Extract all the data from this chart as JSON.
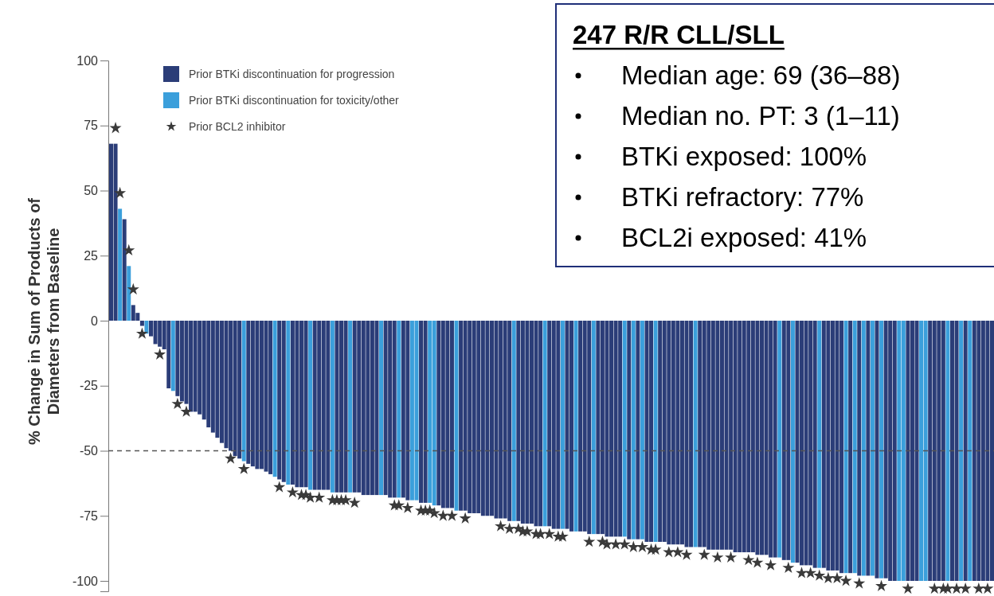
{
  "chart_data": {
    "type": "bar",
    "ylabel": "% Change in Sum of Products of\nDiameters from Baseline",
    "categories": [
      null,
      null,
      null,
      null,
      null,
      null,
      null,
      null,
      null,
      null,
      null,
      null,
      null,
      null,
      null,
      null,
      null,
      null,
      null,
      null,
      null,
      null,
      null,
      null,
      null,
      null,
      null,
      null,
      null,
      null,
      null,
      null,
      null,
      null,
      null,
      null,
      null,
      null,
      null,
      null,
      null,
      null,
      null,
      null,
      null,
      null,
      null,
      null,
      null,
      null,
      null,
      null,
      null,
      null,
      null,
      null,
      null,
      null,
      null,
      null,
      null,
      null,
      null,
      null,
      null,
      null,
      null,
      null,
      null,
      null,
      null,
      null,
      null,
      null,
      null,
      null,
      null,
      null,
      null,
      null,
      null,
      null,
      null,
      null,
      null,
      null,
      null,
      null,
      null,
      null,
      null,
      null,
      null,
      null,
      null,
      null,
      null,
      null,
      null,
      null,
      null,
      null,
      null,
      null,
      null,
      null,
      null,
      null,
      null,
      null,
      null,
      null,
      null,
      null,
      null,
      null,
      null,
      null,
      null,
      null,
      null,
      null,
      null,
      null,
      null,
      null,
      null,
      null,
      null,
      null,
      null,
      null,
      null,
      null,
      null,
      null,
      null,
      null,
      null,
      null,
      null,
      null,
      null,
      null,
      null,
      null,
      null,
      null,
      null,
      null,
      null,
      null,
      null,
      null,
      null,
      null,
      null,
      null,
      null,
      null,
      null,
      null,
      null,
      null,
      null,
      null,
      null,
      null,
      null,
      null,
      null,
      null,
      null,
      null,
      null,
      null,
      null,
      null,
      null,
      null,
      null,
      null,
      null,
      null,
      null,
      null,
      null,
      null,
      null,
      null,
      null,
      null,
      null,
      null,
      null,
      null,
      null,
      null,
      null,
      null
    ],
    "series": [
      {
        "name": "Prior BTKi discontinuation for progression",
        "color": "#2b3d78",
        "values": [
          68,
          68,
          null,
          39,
          null,
          6,
          3,
          -2,
          null,
          -6,
          -9,
          -10,
          -11,
          -26,
          null,
          -29,
          -31,
          -32,
          -35,
          -35,
          -36,
          -38,
          -41,
          -43,
          -45,
          -47,
          -49,
          -50,
          -52,
          -53,
          null,
          -55,
          -56,
          -57,
          -57,
          -58,
          -59,
          null,
          -61,
          -62,
          null,
          -63,
          -64,
          -64,
          -64,
          null,
          -65,
          -65,
          -65,
          -65,
          null,
          -66,
          -66,
          -66,
          null,
          -66,
          -66,
          -67,
          -67,
          -67,
          -67,
          null,
          -67,
          -68,
          -68,
          null,
          -68,
          -69,
          null,
          null,
          -70,
          -70,
          null,
          null,
          -71,
          -72,
          -72,
          -72,
          null,
          -73,
          -73,
          -74,
          -74,
          -74,
          -75,
          -75,
          -75,
          -76,
          -76,
          -76,
          -77,
          null,
          -77,
          -78,
          -78,
          -78,
          -79,
          -79,
          null,
          -79,
          -80,
          -80,
          null,
          -80,
          -81,
          null,
          -81,
          -81,
          -82,
          null,
          -82,
          -82,
          -83,
          -83,
          -83,
          -83,
          null,
          -84,
          null,
          -84,
          null,
          -85,
          -85,
          null,
          -85,
          -85,
          -86,
          -86,
          -86,
          -86,
          -87,
          -87,
          null,
          -87,
          -87,
          -88,
          -88,
          -88,
          -88,
          -88,
          -88,
          -89,
          -89,
          -89,
          -89,
          -89,
          -90,
          -90,
          -90,
          -91,
          -91,
          null,
          -92,
          -92,
          null,
          -93,
          -94,
          -94,
          -94,
          -95,
          null,
          -95,
          -96,
          -96,
          -96,
          -97,
          null,
          -97,
          null,
          -98,
          null,
          -98,
          null,
          -99,
          null,
          -99,
          -100,
          -100,
          null,
          null,
          -100,
          -100,
          -100,
          null,
          null,
          -100,
          -100,
          -100,
          -100,
          null,
          -100,
          -100,
          null,
          -100,
          null,
          -100,
          -100,
          -100,
          -100,
          -100
        ]
      },
      {
        "name": "Prior BTKi discontinuation for toxicity/other",
        "color": "#3b9fdb",
        "values": [
          null,
          null,
          43,
          null,
          21,
          null,
          null,
          null,
          -5,
          null,
          null,
          null,
          null,
          null,
          -27,
          null,
          null,
          null,
          null,
          null,
          null,
          null,
          null,
          null,
          null,
          null,
          null,
          null,
          null,
          null,
          -54,
          null,
          null,
          null,
          null,
          null,
          null,
          -60,
          null,
          null,
          -63,
          null,
          null,
          null,
          null,
          -65,
          null,
          null,
          null,
          null,
          -66,
          null,
          null,
          null,
          -66,
          null,
          null,
          null,
          null,
          null,
          null,
          -67,
          null,
          null,
          null,
          -68,
          null,
          null,
          -69,
          -69,
          null,
          null,
          -70,
          -71,
          null,
          null,
          null,
          null,
          -73,
          null,
          null,
          null,
          null,
          null,
          null,
          null,
          null,
          null,
          null,
          null,
          null,
          -77,
          null,
          null,
          null,
          null,
          null,
          null,
          -79,
          null,
          null,
          null,
          -80,
          null,
          null,
          -81,
          null,
          null,
          null,
          -82,
          null,
          null,
          null,
          null,
          null,
          null,
          -83,
          null,
          -84,
          null,
          -84,
          null,
          null,
          -85,
          null,
          null,
          null,
          null,
          null,
          null,
          null,
          null,
          -87,
          null,
          null,
          null,
          null,
          null,
          null,
          null,
          null,
          null,
          null,
          null,
          null,
          null,
          null,
          null,
          null,
          null,
          null,
          -91,
          null,
          null,
          -93,
          null,
          null,
          null,
          null,
          null,
          -95,
          null,
          null,
          null,
          null,
          null,
          -97,
          null,
          -97,
          null,
          -98,
          null,
          -98,
          null,
          -99,
          null,
          null,
          null,
          -100,
          -100,
          null,
          null,
          null,
          -100,
          -100,
          null,
          null,
          null,
          null,
          -100,
          null,
          null,
          -100,
          null,
          -100,
          null,
          null,
          null,
          null,
          null
        ]
      },
      {
        "name": "Prior BCL2 inhibitor",
        "type": "scatter",
        "marker": "star",
        "color": "#3a3a3a",
        "values": [
          null,
          74,
          49,
          null,
          27,
          12,
          null,
          -5,
          null,
          null,
          null,
          -13,
          null,
          null,
          null,
          -32,
          null,
          -35,
          null,
          null,
          null,
          null,
          null,
          null,
          null,
          null,
          null,
          -53,
          null,
          null,
          -57,
          null,
          null,
          null,
          null,
          null,
          null,
          null,
          -64,
          null,
          null,
          -66,
          null,
          -67,
          -67,
          -68,
          null,
          -68,
          null,
          null,
          -69,
          -69,
          -69,
          -69,
          null,
          -70,
          null,
          null,
          null,
          null,
          null,
          null,
          null,
          null,
          -71,
          -71,
          null,
          -72,
          null,
          null,
          -73,
          -73,
          -73,
          -74,
          null,
          -75,
          null,
          -75,
          null,
          null,
          -76,
          null,
          null,
          null,
          null,
          null,
          null,
          null,
          -79,
          null,
          -80,
          null,
          -80,
          -81,
          -81,
          null,
          -82,
          -82,
          null,
          -82,
          null,
          -83,
          -83,
          null,
          null,
          null,
          null,
          null,
          -85,
          null,
          null,
          -85,
          -86,
          null,
          -86,
          null,
          -86,
          null,
          -87,
          null,
          -87,
          null,
          -88,
          -88,
          null,
          null,
          -89,
          null,
          -89,
          null,
          -90,
          null,
          null,
          null,
          -90,
          null,
          null,
          -91,
          null,
          null,
          -91,
          null,
          null,
          null,
          -92,
          null,
          -93,
          null,
          null,
          -94,
          null,
          null,
          null,
          -95,
          null,
          null,
          -97,
          null,
          -97,
          null,
          -98,
          null,
          -99,
          null,
          -99,
          null,
          -100,
          null,
          null,
          -101,
          null,
          null,
          null,
          null,
          -102,
          null,
          null,
          null,
          null,
          null,
          -103,
          null,
          null,
          null,
          null,
          null,
          -103,
          null,
          -103,
          -103,
          null,
          -103,
          null,
          -103,
          null,
          null,
          -103,
          null,
          -103,
          null
        ]
      }
    ],
    "ylim": [
      -104,
      100
    ],
    "yticks": [
      -100,
      -75,
      -50,
      -25,
      0,
      25,
      50,
      75,
      100
    ],
    "ref_lines": [
      {
        "axis": "y",
        "value": -50,
        "line_style": "dashed",
        "color": "#555555"
      }
    ],
    "legend": "top left",
    "annotations": [
      "247 R/R CLL/SLL",
      "Median age: 69 (36–88)",
      "Median no. PT: 3 (1–11)",
      "BTKi exposed: 100%",
      "BTKi refractory: 77%",
      "BCL2i exposed: 41%"
    ]
  }
}
